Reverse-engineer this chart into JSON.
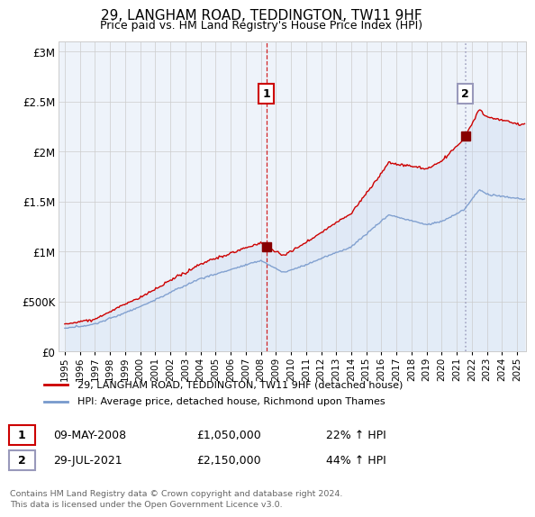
{
  "title": "29, LANGHAM ROAD, TEDDINGTON, TW11 9HF",
  "subtitle": "Price paid vs. HM Land Registry's House Price Index (HPI)",
  "ylabel_ticks": [
    "£0",
    "£500K",
    "£1M",
    "£1.5M",
    "£2M",
    "£2.5M",
    "£3M"
  ],
  "ytick_values": [
    0,
    500000,
    1000000,
    1500000,
    2000000,
    2500000,
    3000000
  ],
  "ylim": [
    0,
    3100000
  ],
  "sale1_date": "09-MAY-2008",
  "sale1_price": 1050000,
  "sale1_hpi_pct": "22% ↑ HPI",
  "sale2_date": "29-JUL-2021",
  "sale2_price": 2150000,
  "sale2_hpi_pct": "44% ↑ HPI",
  "legend_red": "29, LANGHAM ROAD, TEDDINGTON, TW11 9HF (detached house)",
  "legend_blue": "HPI: Average price, detached house, Richmond upon Thames",
  "footer": "Contains HM Land Registry data © Crown copyright and database right 2024.\nThis data is licensed under the Open Government Licence v3.0.",
  "red_color": "#cc0000",
  "blue_color": "#7799cc",
  "sale_marker_color": "#990000",
  "vline1_color": "#cc0000",
  "vline2_color": "#9999bb",
  "plot_bg": "#ffffff",
  "grid_color": "#cccccc",
  "shade_color": "#ddeeff",
  "x_start_year": 1995,
  "x_end_year": 2025,
  "sale1_year": 2008.36,
  "sale2_year": 2021.57
}
